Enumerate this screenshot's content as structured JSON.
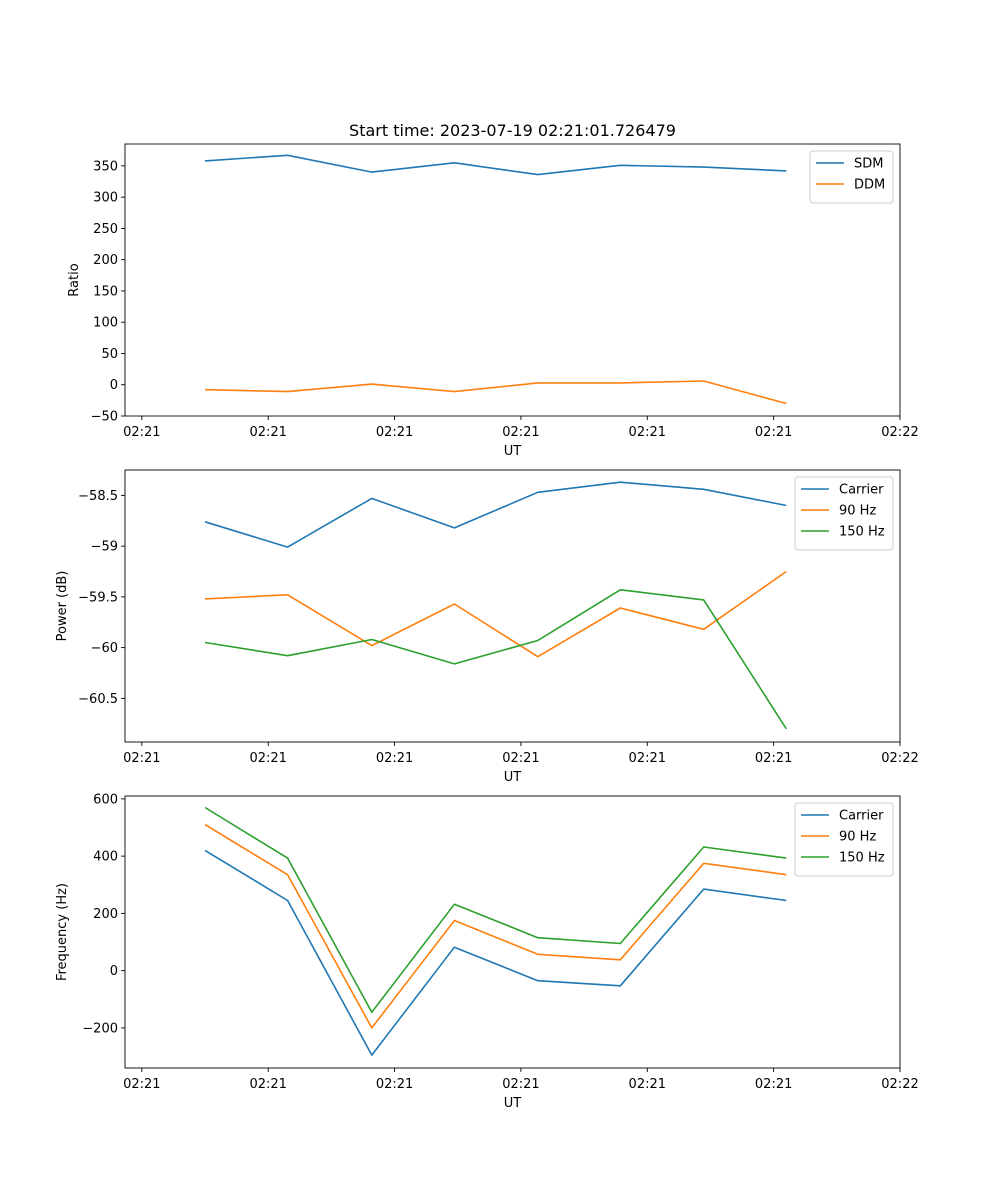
{
  "title": "Start time: 2023-07-19 02:21:01.726479",
  "chart_data": [
    {
      "type": "line",
      "ylabel": "Ratio",
      "xlabel": "UT",
      "xlim": [
        -0.2,
        9
      ],
      "ylim": [
        -50,
        385
      ],
      "x_tick_positions": [
        0,
        1.5,
        3,
        4.5,
        6,
        7.5,
        9
      ],
      "x_tick_labels": [
        "02:21",
        "02:21",
        "02:21",
        "02:21",
        "02:21",
        "02:21",
        "02:22"
      ],
      "yticks": [
        -50,
        0,
        50,
        100,
        150,
        200,
        250,
        300,
        350
      ],
      "x": [
        0.75,
        1.73,
        2.73,
        3.71,
        4.7,
        5.68,
        6.67,
        7.65
      ],
      "series": [
        {
          "name": "SDM",
          "color": "#1f77b4",
          "values": [
            358,
            367,
            340,
            355,
            336,
            351,
            348,
            342
          ]
        },
        {
          "name": "DDM",
          "color": "#ff7f0e",
          "values": [
            -8,
            -11,
            1,
            -11,
            3,
            3,
            6,
            -30
          ]
        }
      ],
      "legend": "top-right"
    },
    {
      "type": "line",
      "ylabel": "Power (dB)",
      "xlabel": "UT",
      "xlim": [
        -0.2,
        9
      ],
      "ylim": [
        -60.93,
        -58.25
      ],
      "x_tick_positions": [
        0,
        1.5,
        3,
        4.5,
        6,
        7.5,
        9
      ],
      "x_tick_labels": [
        "02:21",
        "02:21",
        "02:21",
        "02:21",
        "02:21",
        "02:21",
        "02:22"
      ],
      "yticks": [
        -60.5,
        -60.0,
        -59.5,
        -59.0,
        -58.5
      ],
      "x": [
        0.75,
        1.73,
        2.73,
        3.71,
        4.7,
        5.68,
        6.67,
        7.65
      ],
      "series": [
        {
          "name": "Carrier",
          "color": "#1f77b4",
          "values": [
            -58.76,
            -59.01,
            -58.53,
            -58.82,
            -58.47,
            -58.37,
            -58.44,
            -58.6
          ]
        },
        {
          "name": "90 Hz",
          "color": "#ff7f0e",
          "values": [
            -59.52,
            -59.48,
            -59.98,
            -59.57,
            -60.09,
            -59.61,
            -59.82,
            -59.25
          ]
        },
        {
          "name": "150 Hz",
          "color": "#2ca02c",
          "values": [
            -59.95,
            -60.08,
            -59.92,
            -60.16,
            -59.93,
            -59.43,
            -59.53,
            -60.8
          ]
        }
      ],
      "legend": "top-right"
    },
    {
      "type": "line",
      "ylabel": "Frequency (Hz)",
      "xlabel": "UT",
      "xlim": [
        -0.2,
        9
      ],
      "ylim": [
        -340,
        610
      ],
      "x_tick_positions": [
        0,
        1.5,
        3,
        4.5,
        6,
        7.5,
        9
      ],
      "x_tick_labels": [
        "02:21",
        "02:21",
        "02:21",
        "02:21",
        "02:21",
        "02:21",
        "02:22"
      ],
      "yticks": [
        -200,
        0,
        200,
        400,
        600
      ],
      "x": [
        0.75,
        1.73,
        2.73,
        3.71,
        4.7,
        5.68,
        6.67,
        7.65
      ],
      "series": [
        {
          "name": "Carrier",
          "color": "#1f77b4",
          "values": [
            420,
            245,
            -295,
            82,
            -35,
            -53,
            285,
            245
          ]
        },
        {
          "name": "90 Hz",
          "color": "#ff7f0e",
          "values": [
            510,
            335,
            -200,
            175,
            57,
            38,
            375,
            335
          ]
        },
        {
          "name": "150 Hz",
          "color": "#2ca02c",
          "values": [
            570,
            393,
            -145,
            232,
            115,
            95,
            432,
            393
          ]
        }
      ],
      "legend": "top-right"
    }
  ]
}
